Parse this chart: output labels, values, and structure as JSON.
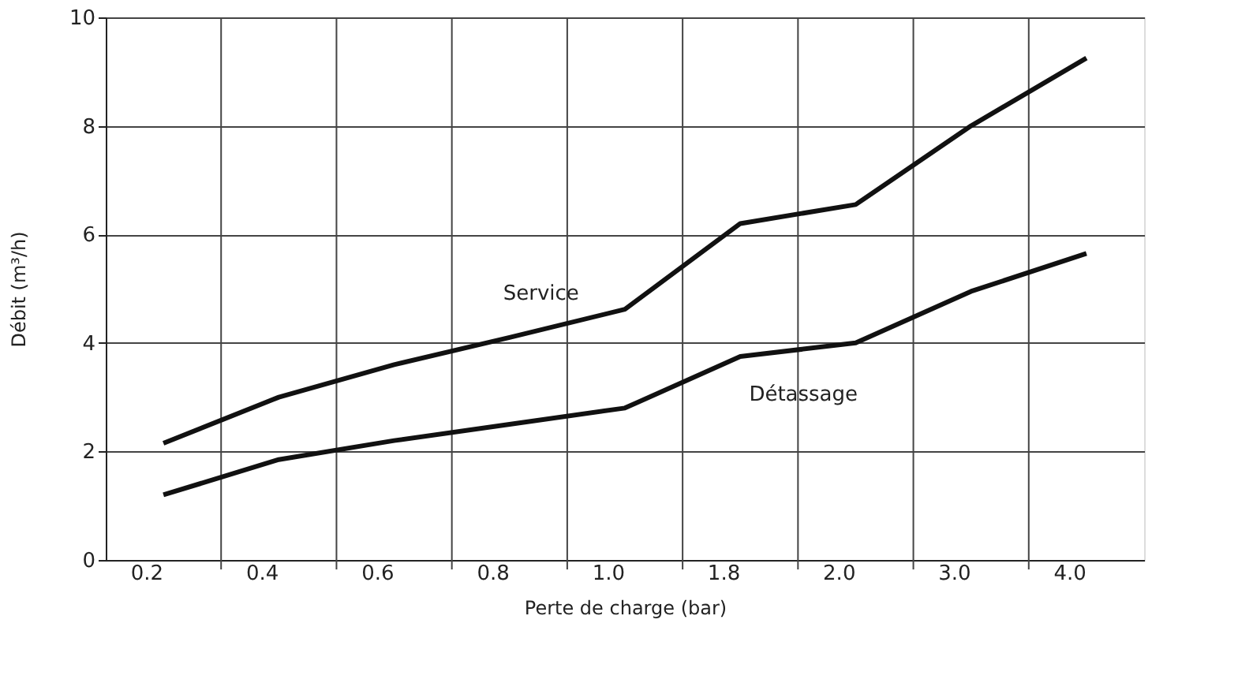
{
  "chart_data": {
    "type": "line",
    "xlabel": "Perte de charge (bar)",
    "ylabel": "Débit (m³/h)",
    "categories": [
      "0.2",
      "0.4",
      "0.6",
      "0.8",
      "1.0",
      "1.8",
      "2.0",
      "3.0",
      "4.0"
    ],
    "series": [
      {
        "name": "Service",
        "color": "#111111",
        "values": [
          2.15,
          3.0,
          3.6,
          4.1,
          4.62,
          6.2,
          6.55,
          8.0,
          9.25
        ]
      },
      {
        "name": "Détassage",
        "color": "#111111",
        "values": [
          1.2,
          1.85,
          2.2,
          2.5,
          2.8,
          3.75,
          4.0,
          4.95,
          5.65
        ]
      }
    ],
    "ylim": [
      0,
      10
    ],
    "yticks": [
      0,
      2,
      4,
      6,
      8,
      10
    ],
    "grid": true,
    "line_style": "solid"
  }
}
